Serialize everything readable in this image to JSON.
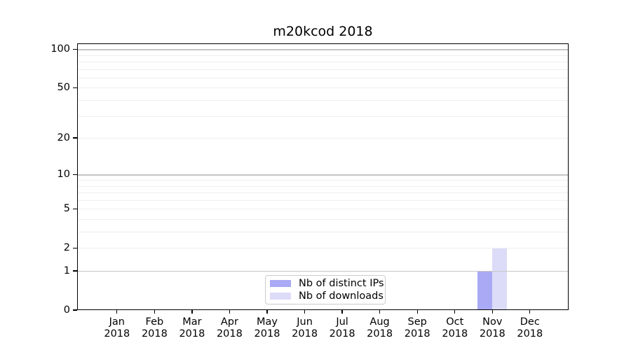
{
  "chart_data": {
    "type": "bar",
    "title": "m20kcod 2018",
    "x_months": [
      "Jan",
      "Feb",
      "Mar",
      "Apr",
      "May",
      "Jun",
      "Jul",
      "Aug",
      "Sep",
      "Oct",
      "Nov",
      "Dec"
    ],
    "x_year": "2018",
    "series": [
      {
        "name": "Nb of distinct IPs",
        "color": "#a9a9f5",
        "values": [
          0,
          0,
          0,
          0,
          0,
          0,
          0,
          0,
          0,
          0,
          1,
          0
        ]
      },
      {
        "name": "Nb of downloads",
        "color": "#dcdcf8",
        "values": [
          0,
          0,
          0,
          0,
          0,
          0,
          0,
          0,
          0,
          0,
          2,
          0
        ]
      }
    ],
    "yscale": "log1p",
    "ylim": [
      0,
      110
    ],
    "ytick_labels": [
      0,
      1,
      2,
      5,
      10,
      20,
      50,
      100
    ],
    "grid": "horizontal",
    "legend_position": "bottom-center-inside"
  }
}
